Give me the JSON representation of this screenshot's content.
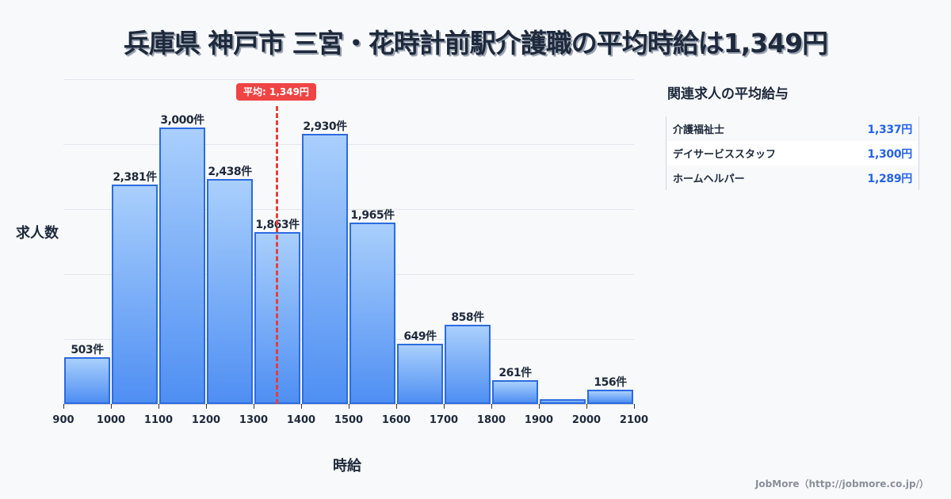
{
  "title": "兵庫県 神戸市 三宮・花時計前駅介護職の平均時給は1,349円",
  "axes": {
    "ylabel": "求人数",
    "xlabel": "時給"
  },
  "mean": {
    "label": "平均: 1,349円",
    "value": 1349,
    "color": "#ef4444"
  },
  "x_ticks": [
    "900",
    "1000",
    "1100",
    "1200",
    "1300",
    "1400",
    "1500",
    "1600",
    "1700",
    "1800",
    "1900",
    "2000",
    "2100"
  ],
  "bars": [
    {
      "label": "503件",
      "value": 503
    },
    {
      "label": "2,381件",
      "value": 2381
    },
    {
      "label": "3,000件",
      "value": 3000
    },
    {
      "label": "2,438件",
      "value": 2438
    },
    {
      "label": "1,863件",
      "value": 1863
    },
    {
      "label": "2,930件",
      "value": 2930
    },
    {
      "label": "1,965件",
      "value": 1965
    },
    {
      "label": "649件",
      "value": 649
    },
    {
      "label": "858件",
      "value": 858
    },
    {
      "label": "261件",
      "value": 261
    },
    {
      "label": "",
      "value": 40
    },
    {
      "label": "156件",
      "value": 156
    }
  ],
  "side": {
    "title": "関連求人の平均給与",
    "rows": [
      {
        "name": "介護福祉士",
        "value": "1,337円"
      },
      {
        "name": "デイサービススタッフ",
        "value": "1,300円"
      },
      {
        "name": "ホームヘルパー",
        "value": "1,289円"
      }
    ]
  },
  "footer": "JobMore（http://jobmore.co.jp/）",
  "colors": {
    "bar_border": "#2c6be0",
    "bar_top": "#a9cffc",
    "bar_bottom": "#4f8ff3",
    "side_value": "#2563eb"
  },
  "chart_data": {
    "type": "bar",
    "title": "兵庫県 神戸市 三宮・花時計前駅介護職の平均時給は1,349円",
    "xlabel": "時給",
    "ylabel": "求人数",
    "categories": [
      "900-1000",
      "1000-1100",
      "1100-1200",
      "1200-1300",
      "1300-1400",
      "1400-1500",
      "1500-1600",
      "1600-1700",
      "1700-1800",
      "1800-1900",
      "1900-2000",
      "2000-2100"
    ],
    "values": [
      503,
      2381,
      3000,
      2438,
      1863,
      2930,
      1965,
      649,
      858,
      261,
      40,
      156
    ],
    "x_ticks": [
      900,
      1000,
      1100,
      1200,
      1300,
      1400,
      1500,
      1600,
      1700,
      1800,
      1900,
      2000,
      2100
    ],
    "xlim": [
      900,
      2100
    ],
    "ylim": [
      0,
      3524
    ],
    "grid": true,
    "annotations": [
      {
        "type": "vline",
        "x": 1349,
        "label": "平均: 1,349円"
      }
    ],
    "note": "1900-2000 bin has no label; height estimated (~40)"
  }
}
